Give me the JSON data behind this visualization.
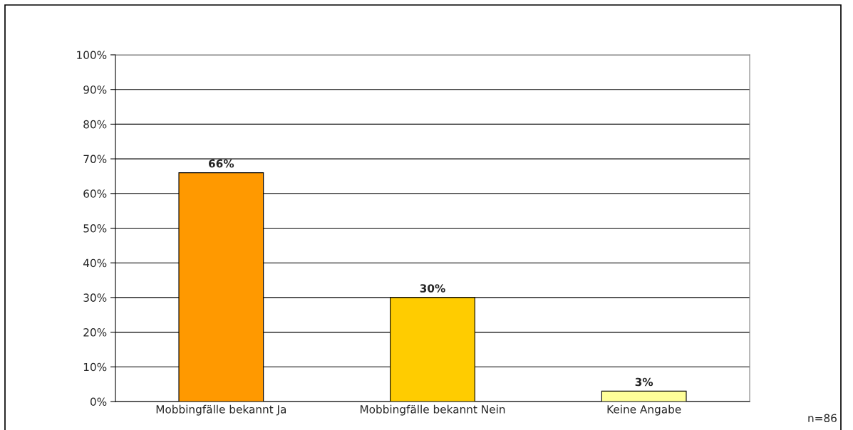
{
  "chart_data": {
    "type": "bar",
    "categories": [
      "Mobbingfälle bekannt Ja",
      "Mobbingfälle bekannt Nein",
      "Keine Angabe"
    ],
    "values": [
      66,
      30,
      3
    ],
    "colors": [
      "#ff9900",
      "#ffcc00",
      "#ffff99"
    ],
    "value_labels": [
      "66%",
      "30%",
      "3%"
    ],
    "ylim": [
      0,
      100
    ],
    "yticks": [
      {
        "value": 0,
        "label": "0%"
      },
      {
        "value": 10,
        "label": "10%"
      },
      {
        "value": 20,
        "label": "20%"
      },
      {
        "value": 30,
        "label": "30%"
      },
      {
        "value": 40,
        "label": "40%"
      },
      {
        "value": 50,
        "label": "50%"
      },
      {
        "value": 60,
        "label": "60%"
      },
      {
        "value": 70,
        "label": "70%"
      },
      {
        "value": 80,
        "label": "80%"
      },
      {
        "value": 90,
        "label": "90%"
      },
      {
        "value": 100,
        "label": "100%"
      }
    ],
    "grid": "y",
    "legend": false,
    "annotations": [
      "n=86"
    ]
  }
}
